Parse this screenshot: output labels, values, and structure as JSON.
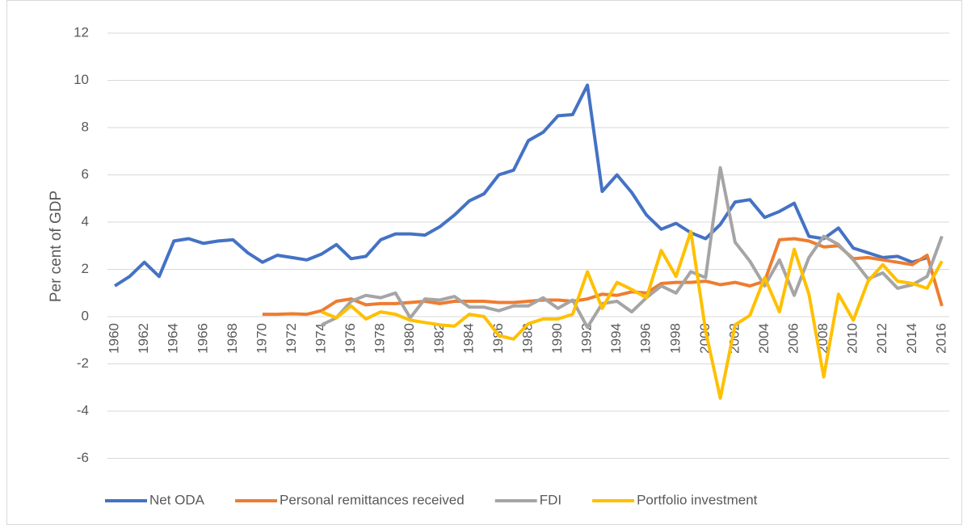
{
  "chart_data": {
    "type": "line",
    "y_label": "Per cent of GDP",
    "categories": [
      "1960",
      null,
      "1962",
      null,
      "1964",
      null,
      "1966",
      null,
      "1968",
      null,
      "1970",
      null,
      "1972",
      null,
      "1974",
      null,
      "1976",
      null,
      "1978",
      null,
      "1980",
      null,
      "1982",
      null,
      "1984",
      null,
      "1986",
      null,
      "1988",
      null,
      "1990",
      null,
      "1992",
      null,
      "1994",
      null,
      "1996",
      null,
      "1998",
      null,
      "2000",
      null,
      "2002",
      null,
      "2004",
      null,
      "2006",
      null,
      "2008",
      null,
      "2010",
      null,
      "2012",
      null,
      "2014",
      null,
      "2016"
    ],
    "series": [
      {
        "name": "Net ODA",
        "color": "#4472c4",
        "values": [
          1.3,
          1.7,
          2.3,
          1.7,
          3.2,
          3.3,
          3.1,
          3.2,
          3.25,
          2.7,
          2.3,
          2.6,
          2.5,
          2.4,
          2.65,
          3.05,
          2.45,
          2.55,
          3.25,
          3.5,
          3.5,
          3.45,
          3.8,
          4.3,
          4.9,
          5.2,
          6.0,
          6.2,
          7.45,
          7.8,
          8.5,
          8.55,
          9.8,
          5.3,
          6.0,
          5.25,
          4.3,
          3.7,
          3.95,
          3.55,
          3.3,
          3.9,
          4.85,
          4.95,
          4.2,
          4.45,
          4.8,
          3.4,
          3.3,
          3.75,
          2.9,
          2.7,
          2.5,
          2.55,
          2.3,
          2.5,
          null
        ]
      },
      {
        "name": "Personal remittances received",
        "color": "#ed7d31",
        "values": [
          null,
          null,
          null,
          null,
          null,
          null,
          null,
          null,
          null,
          null,
          0.1,
          0.1,
          0.12,
          0.1,
          0.25,
          0.65,
          0.75,
          0.5,
          0.55,
          0.55,
          0.6,
          0.65,
          0.55,
          0.65,
          0.65,
          0.65,
          0.6,
          0.6,
          0.65,
          0.7,
          0.7,
          0.65,
          0.75,
          0.95,
          0.9,
          1.05,
          1.0,
          1.4,
          1.45,
          1.45,
          1.5,
          1.35,
          1.45,
          1.3,
          1.5,
          3.25,
          3.3,
          3.2,
          2.95,
          3.0,
          2.45,
          2.5,
          2.4,
          2.3,
          2.2,
          2.6,
          0.45
        ]
      },
      {
        "name": "FDI",
        "color": "#a5a5a5",
        "values": [
          null,
          null,
          null,
          null,
          null,
          null,
          null,
          null,
          null,
          null,
          null,
          null,
          null,
          null,
          -0.35,
          -0.05,
          0.65,
          0.9,
          0.8,
          1.0,
          -0.05,
          0.75,
          0.7,
          0.85,
          0.4,
          0.4,
          0.25,
          0.45,
          0.45,
          0.8,
          0.35,
          0.7,
          -0.45,
          0.55,
          0.65,
          0.2,
          0.8,
          1.3,
          1.0,
          1.9,
          1.65,
          6.3,
          3.15,
          2.35,
          1.3,
          2.4,
          0.9,
          2.5,
          3.4,
          3.05,
          2.4,
          1.6,
          1.85,
          1.2,
          1.35,
          1.7,
          3.4
        ]
      },
      {
        "name": "Portfolio investment",
        "color": "#ffc000",
        "values": [
          null,
          null,
          null,
          null,
          null,
          null,
          null,
          null,
          null,
          null,
          null,
          null,
          null,
          null,
          0.2,
          -0.05,
          0.45,
          -0.1,
          0.2,
          0.1,
          -0.15,
          -0.25,
          -0.35,
          -0.4,
          0.1,
          0.0,
          -0.8,
          -0.95,
          -0.3,
          -0.1,
          -0.1,
          0.1,
          1.9,
          0.35,
          1.45,
          1.15,
          0.8,
          2.8,
          1.7,
          3.6,
          -0.6,
          -3.45,
          -0.35,
          0.05,
          1.65,
          0.2,
          2.85,
          0.95,
          -2.55,
          0.95,
          -0.15,
          1.5,
          2.2,
          1.5,
          1.4,
          1.2,
          2.35
        ]
      }
    ],
    "ylim": [
      -6,
      12
    ],
    "yticks": [
      -6,
      -4,
      -2,
      0,
      2,
      4,
      6,
      8,
      10,
      12
    ],
    "grid": true,
    "legend": "bottom"
  }
}
